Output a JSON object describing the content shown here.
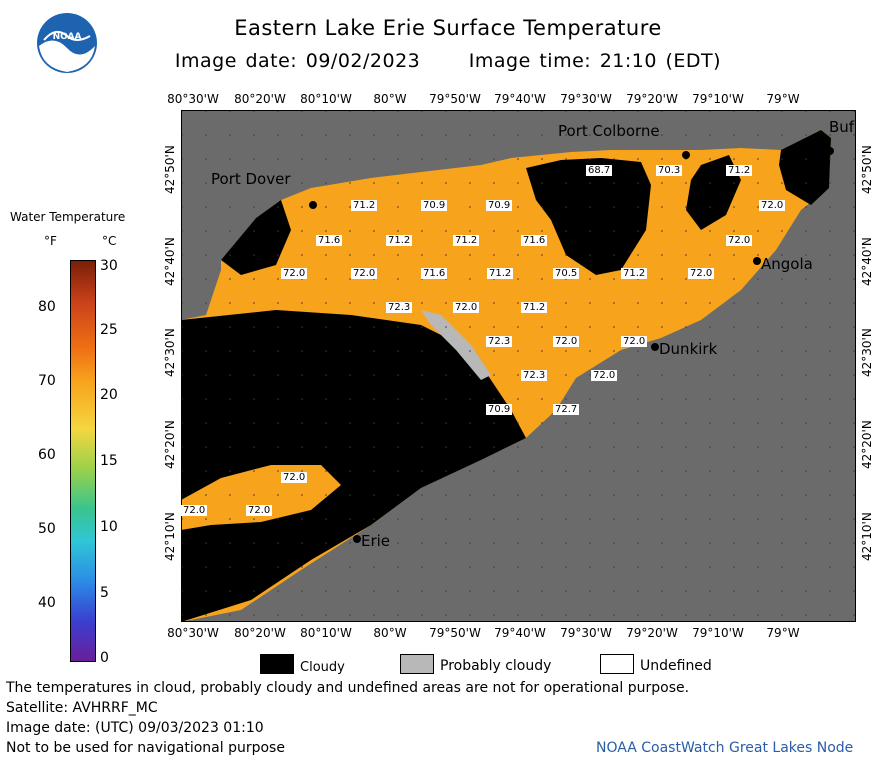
{
  "header": {
    "title": "Eastern Lake Erie Surface Temperature",
    "image_date": "Image date: 09/02/2023",
    "image_time": "Image time: 21:10 (EDT)"
  },
  "logo": {
    "text": "NOAA"
  },
  "longitude_labels": [
    "80°30'W",
    "80°20'W",
    "80°10'W",
    "80°W",
    "79°50'W",
    "79°40'W",
    "79°30'W",
    "79°20'W",
    "79°10'W",
    "79°W"
  ],
  "latitude_labels": [
    "42°50'N",
    "42°40'N",
    "42°30'N",
    "42°20'N",
    "42°10'N"
  ],
  "cities": [
    {
      "name": "Port Dover"
    },
    {
      "name": "Port Colborne"
    },
    {
      "name": "Buf"
    },
    {
      "name": "Angola"
    },
    {
      "name": "Dunkirk"
    },
    {
      "name": "Erie"
    }
  ],
  "temperature_labels": [
    "68.7",
    "70.3",
    "71.2",
    "71.2",
    "70.9",
    "70.9",
    "72.0",
    "71.6",
    "71.2",
    "71.2",
    "71.6",
    "72.0",
    "72.0",
    "72.0",
    "71.6",
    "71.2",
    "70.5",
    "71.2",
    "72.0",
    "72.3",
    "72.0",
    "71.2",
    "72.3",
    "72.0",
    "72.0",
    "72.3",
    "72.0",
    "70.9",
    "72.7",
    "72.0",
    "72.0",
    "72.0"
  ],
  "colorbar": {
    "title": "Water Temperature",
    "unit_f": "°F",
    "unit_c": "°C",
    "f_ticks": [
      "80",
      "70",
      "60",
      "50",
      "40"
    ],
    "c_ticks": [
      "30",
      "25",
      "20",
      "15",
      "10",
      "5",
      "0"
    ]
  },
  "legend": {
    "cloudy": "Cloudy",
    "probably_cloudy": "Probably cloudy",
    "undefined": "Undefined"
  },
  "footer": {
    "disclaimer": "The temperatures in cloud, probably cloudy and undefined areas are not for operational purpose.",
    "satellite": "Satellite: AVHRRF_MC",
    "utc_date": "Image date: (UTC) 09/03/2023  01:10",
    "nav_warning": "Not to be used for navigational purpose",
    "credit": "NOAA CoastWatch Great Lakes Node"
  },
  "colors": {
    "land": "#6b6b6b",
    "cloud": "#000000",
    "water_warm": "#f7a31c",
    "probably_cloudy": "#b8b8b8",
    "credit": "#2a5ca8"
  }
}
